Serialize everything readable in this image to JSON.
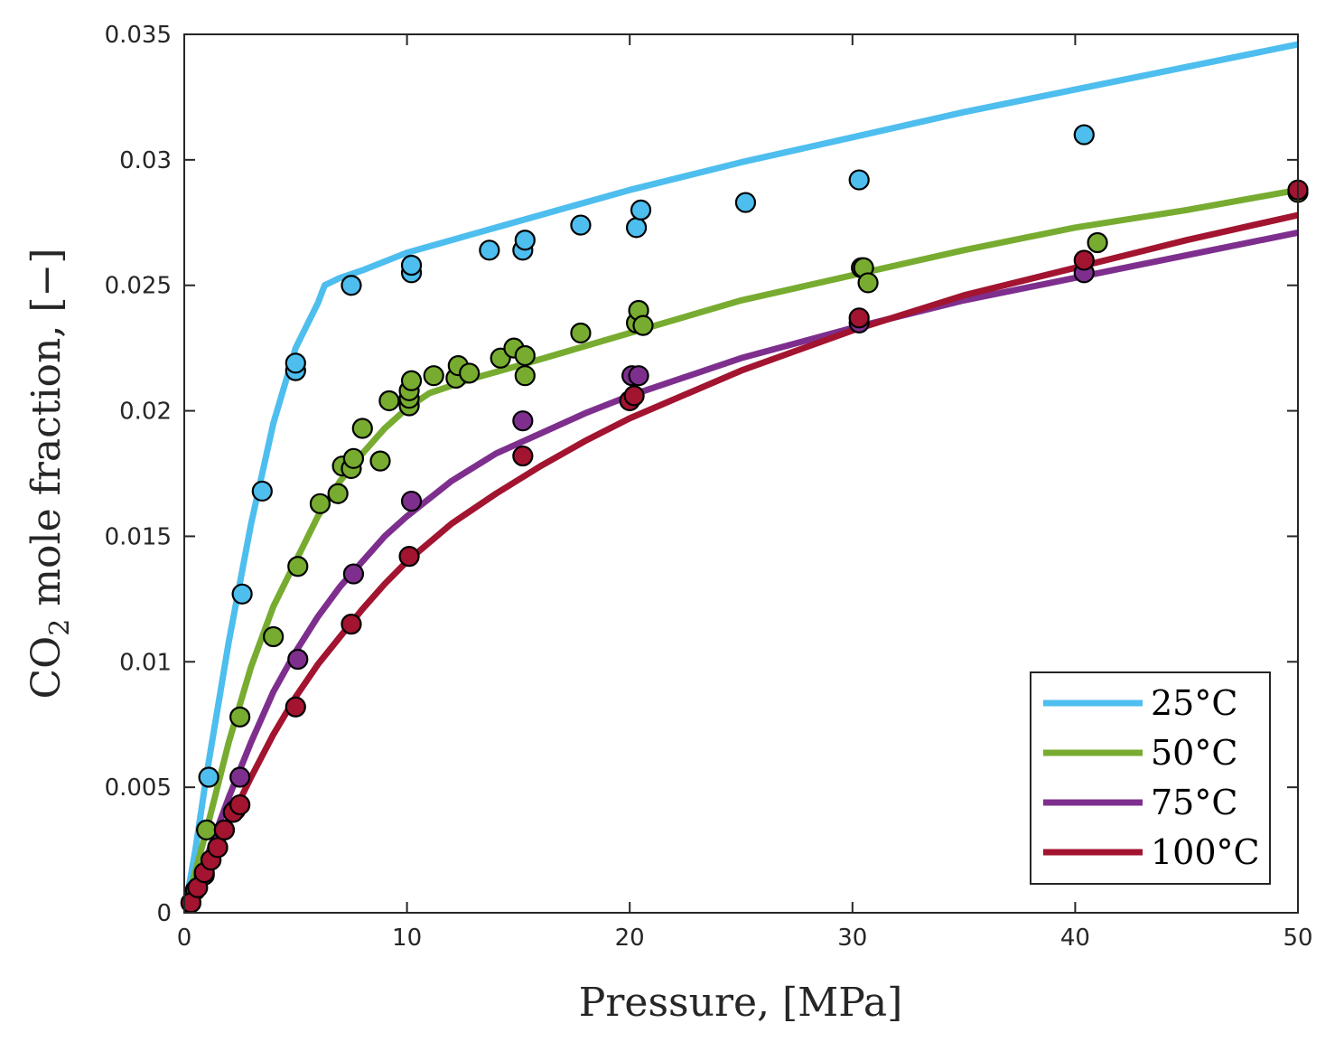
{
  "chart_data": {
    "type": "line",
    "xlabel": "Pressure,  [MPa]",
    "ylabel_prefix": "CO",
    "ylabel_subscript": "2",
    "ylabel_suffix": " mole fraction,  [−]",
    "xlim": [
      0,
      50
    ],
    "ylim": [
      0,
      0.035
    ],
    "x_ticks": [
      0,
      10,
      20,
      30,
      40,
      50
    ],
    "x_tick_labels": [
      "0",
      "10",
      "20",
      "30",
      "40",
      "50"
    ],
    "y_ticks": [
      0,
      0.005,
      0.01,
      0.015,
      0.02,
      0.025,
      0.03,
      0.035
    ],
    "y_tick_labels": [
      "0",
      "0.005",
      "0.01",
      "0.015",
      "0.02",
      "0.025",
      "0.03",
      "0.035"
    ],
    "grid": false,
    "legend_position": "bottom-right",
    "series": [
      {
        "name": "25°C",
        "color": "#4DBEEE",
        "line": {
          "x": [
            0,
            0.5,
            1,
            2,
            3,
            4,
            5,
            6,
            6.3,
            7,
            8,
            10,
            14,
            20,
            25,
            30,
            35,
            40,
            45,
            50
          ],
          "y": [
            0,
            0.0025,
            0.0055,
            0.0108,
            0.0155,
            0.0195,
            0.0225,
            0.0243,
            0.025,
            0.0253,
            0.0256,
            0.0263,
            0.0273,
            0.0288,
            0.0299,
            0.0309,
            0.0319,
            0.0328,
            0.0337,
            0.0346
          ]
        },
        "points": {
          "x": [
            1.1,
            2.6,
            3.5,
            5.0,
            5.0,
            7.5,
            10.2,
            10.2,
            13.7,
            15.2,
            15.3,
            17.8,
            20.3,
            20.5,
            25.2,
            30.3,
            40.4
          ],
          "y": [
            0.0054,
            0.0127,
            0.0168,
            0.0216,
            0.0219,
            0.025,
            0.0255,
            0.0258,
            0.0264,
            0.0264,
            0.0268,
            0.0274,
            0.0273,
            0.028,
            0.0283,
            0.0292,
            0.031
          ]
        }
      },
      {
        "name": "50°C",
        "color": "#77AC30",
        "line": {
          "x": [
            0,
            1,
            2,
            3,
            4,
            5,
            6,
            7,
            8,
            9,
            10,
            11,
            13,
            15,
            20,
            25,
            30,
            35,
            40,
            45,
            50
          ],
          "y": [
            0,
            0.0033,
            0.0068,
            0.0098,
            0.0122,
            0.014,
            0.0158,
            0.0172,
            0.0183,
            0.0193,
            0.0201,
            0.0207,
            0.0213,
            0.0218,
            0.0231,
            0.0244,
            0.0254,
            0.0264,
            0.0273,
            0.028,
            0.0288
          ]
        },
        "points": {
          "x": [
            1.0,
            2.5,
            4.0,
            5.1,
            6.1,
            6.9,
            7.1,
            7.5,
            7.6,
            8.0,
            8.8,
            9.2,
            10.1,
            10.1,
            10.1,
            10.2,
            11.2,
            12.2,
            12.3,
            12.8,
            14.2,
            14.8,
            15.3,
            15.3,
            17.8,
            20.3,
            20.4,
            20.6,
            30.4,
            30.5,
            30.7,
            41.0,
            50.0
          ],
          "y": [
            0.0033,
            0.0078,
            0.011,
            0.0138,
            0.0163,
            0.0167,
            0.0178,
            0.0177,
            0.0181,
            0.0193,
            0.018,
            0.0204,
            0.0202,
            0.0205,
            0.0208,
            0.0212,
            0.0214,
            0.0213,
            0.0218,
            0.0215,
            0.0221,
            0.0225,
            0.0214,
            0.0222,
            0.0231,
            0.0235,
            0.024,
            0.0234,
            0.0257,
            0.0257,
            0.0251,
            0.0267,
            0.0287
          ]
        }
      },
      {
        "name": "75°C",
        "color": "#7E2F8E",
        "line": {
          "x": [
            0,
            1,
            2,
            3,
            4,
            5,
            6,
            7,
            8,
            9,
            10,
            12,
            14,
            16,
            18,
            20,
            25,
            30,
            35,
            40,
            45,
            50
          ],
          "y": [
            0,
            0.0022,
            0.0046,
            0.0068,
            0.0088,
            0.0104,
            0.0118,
            0.013,
            0.014,
            0.015,
            0.0158,
            0.0172,
            0.0183,
            0.0191,
            0.0199,
            0.0206,
            0.0221,
            0.0233,
            0.0244,
            0.0253,
            0.0262,
            0.0271
          ]
        },
        "points": {
          "x": [
            0.3,
            0.5,
            0.9,
            1.2,
            1.5,
            1.8,
            2.3,
            2.5,
            5.1,
            7.6,
            10.2,
            15.2,
            20.1,
            20.4,
            30.3,
            40.4
          ],
          "y": [
            0.0004,
            0.0009,
            0.0015,
            0.0021,
            0.0026,
            0.0033,
            0.0041,
            0.0054,
            0.0101,
            0.0135,
            0.0164,
            0.0196,
            0.0214,
            0.0214,
            0.0235,
            0.0255
          ]
        }
      },
      {
        "name": "100°C",
        "color": "#A2142F",
        "line": {
          "x": [
            0,
            1,
            2,
            3,
            4,
            5,
            6,
            7,
            8,
            9,
            10,
            12,
            14,
            16,
            18,
            20,
            25,
            30,
            35,
            40,
            45,
            50
          ],
          "y": [
            0,
            0.0018,
            0.0036,
            0.0054,
            0.0071,
            0.0086,
            0.0099,
            0.011,
            0.0121,
            0.0131,
            0.014,
            0.0155,
            0.0167,
            0.0178,
            0.0188,
            0.0197,
            0.0216,
            0.0232,
            0.0246,
            0.0257,
            0.0268,
            0.0278
          ]
        },
        "points": {
          "x": [
            0.3,
            0.6,
            0.9,
            1.2,
            1.5,
            1.8,
            2.2,
            2.5,
            5.0,
            7.5,
            10.1,
            15.2,
            20.0,
            20.2,
            30.3,
            40.4,
            50.0
          ],
          "y": [
            0.0004,
            0.001,
            0.0016,
            0.0021,
            0.0026,
            0.0033,
            0.004,
            0.0043,
            0.0082,
            0.0115,
            0.0142,
            0.0182,
            0.0204,
            0.0206,
            0.0237,
            0.026,
            0.0288
          ]
        }
      }
    ]
  }
}
